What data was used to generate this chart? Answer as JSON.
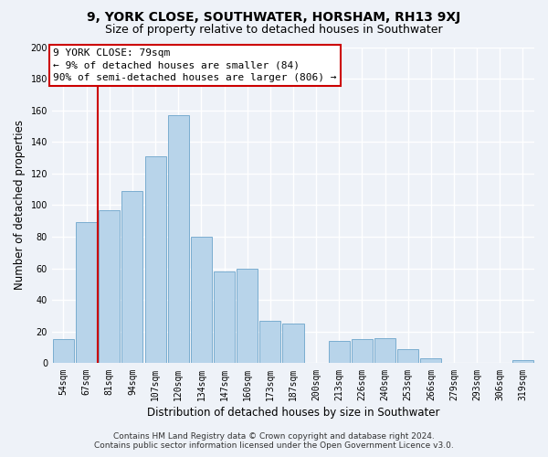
{
  "title": "9, YORK CLOSE, SOUTHWATER, HORSHAM, RH13 9XJ",
  "subtitle": "Size of property relative to detached houses in Southwater",
  "xlabel": "Distribution of detached houses by size in Southwater",
  "ylabel": "Number of detached properties",
  "bar_labels": [
    "54sqm",
    "67sqm",
    "81sqm",
    "94sqm",
    "107sqm",
    "120sqm",
    "134sqm",
    "147sqm",
    "160sqm",
    "173sqm",
    "187sqm",
    "200sqm",
    "213sqm",
    "226sqm",
    "240sqm",
    "253sqm",
    "266sqm",
    "279sqm",
    "293sqm",
    "306sqm",
    "319sqm"
  ],
  "bar_values": [
    15,
    89,
    97,
    109,
    131,
    157,
    80,
    58,
    60,
    27,
    25,
    0,
    14,
    15,
    16,
    9,
    3,
    0,
    0,
    0,
    2
  ],
  "bar_color": "#b8d4ea",
  "bar_edge_color": "#7aadd0",
  "annotation_title": "9 YORK CLOSE: 79sqm",
  "annotation_line1": "← 9% of detached houses are smaller (84)",
  "annotation_line2": "90% of semi-detached houses are larger (806) →",
  "annotation_box_facecolor": "#ffffff",
  "annotation_box_edgecolor": "#cc0000",
  "vline_color": "#cc0000",
  "vline_x_index": 2,
  "ylim": [
    0,
    200
  ],
  "yticks": [
    0,
    20,
    40,
    60,
    80,
    100,
    120,
    140,
    160,
    180,
    200
  ],
  "footer_line1": "Contains HM Land Registry data © Crown copyright and database right 2024.",
  "footer_line2": "Contains public sector information licensed under the Open Government Licence v3.0.",
  "bg_color": "#eef2f8",
  "grid_color": "#ffffff",
  "title_fontsize": 10,
  "subtitle_fontsize": 9,
  "axis_label_fontsize": 8.5,
  "tick_fontsize": 7,
  "footer_fontsize": 6.5,
  "annotation_fontsize": 8
}
